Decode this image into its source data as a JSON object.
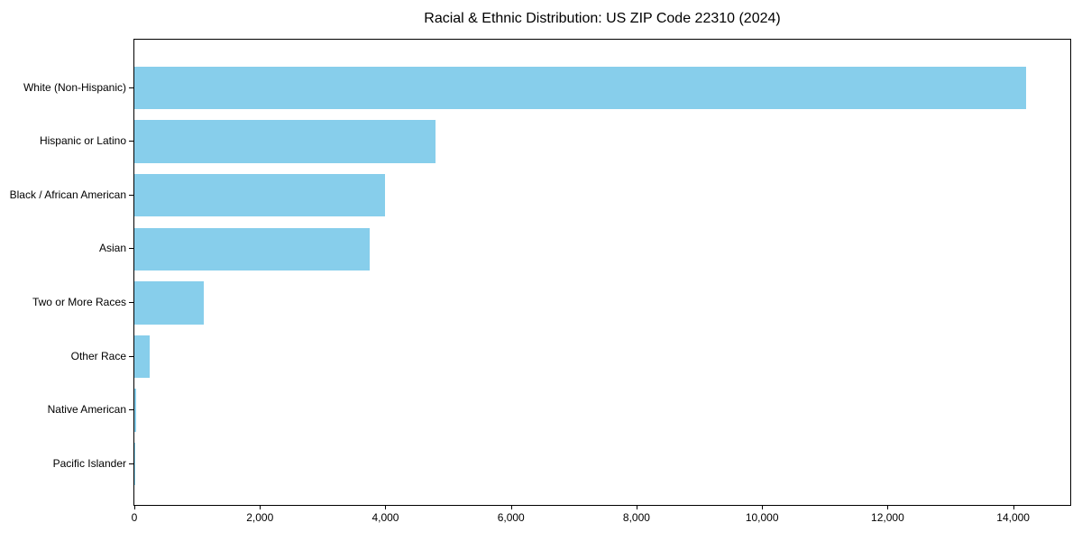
{
  "title": "Racial & Ethnic Distribution: US ZIP Code 22310 (2024)",
  "colors": {
    "bar": "#87CEEB",
    "axis": "#000000",
    "background": "#FFFFFF",
    "text": "#000000"
  },
  "chart_data": {
    "type": "bar",
    "orientation": "horizontal",
    "title": "Racial & Ethnic Distribution: US ZIP Code 22310 (2024)",
    "categories": [
      "White (Non-Hispanic)",
      "Hispanic or Latino",
      "Black / African American",
      "Asian",
      "Two or More Races",
      "Other Race",
      "Native American",
      "Pacific Islander"
    ],
    "values": [
      14200,
      4800,
      4000,
      3750,
      1100,
      250,
      30,
      10
    ],
    "xlabel": "",
    "ylabel": "",
    "xlim": [
      0,
      14910
    ],
    "xticks": [
      0,
      2000,
      4000,
      6000,
      8000,
      10000,
      12000,
      14000
    ],
    "xtick_labels": [
      "0",
      "2,000",
      "4,000",
      "6,000",
      "8,000",
      "10,000",
      "12,000",
      "14,000"
    ],
    "bar_color": "#87CEEB",
    "grid": false,
    "legend": null
  }
}
